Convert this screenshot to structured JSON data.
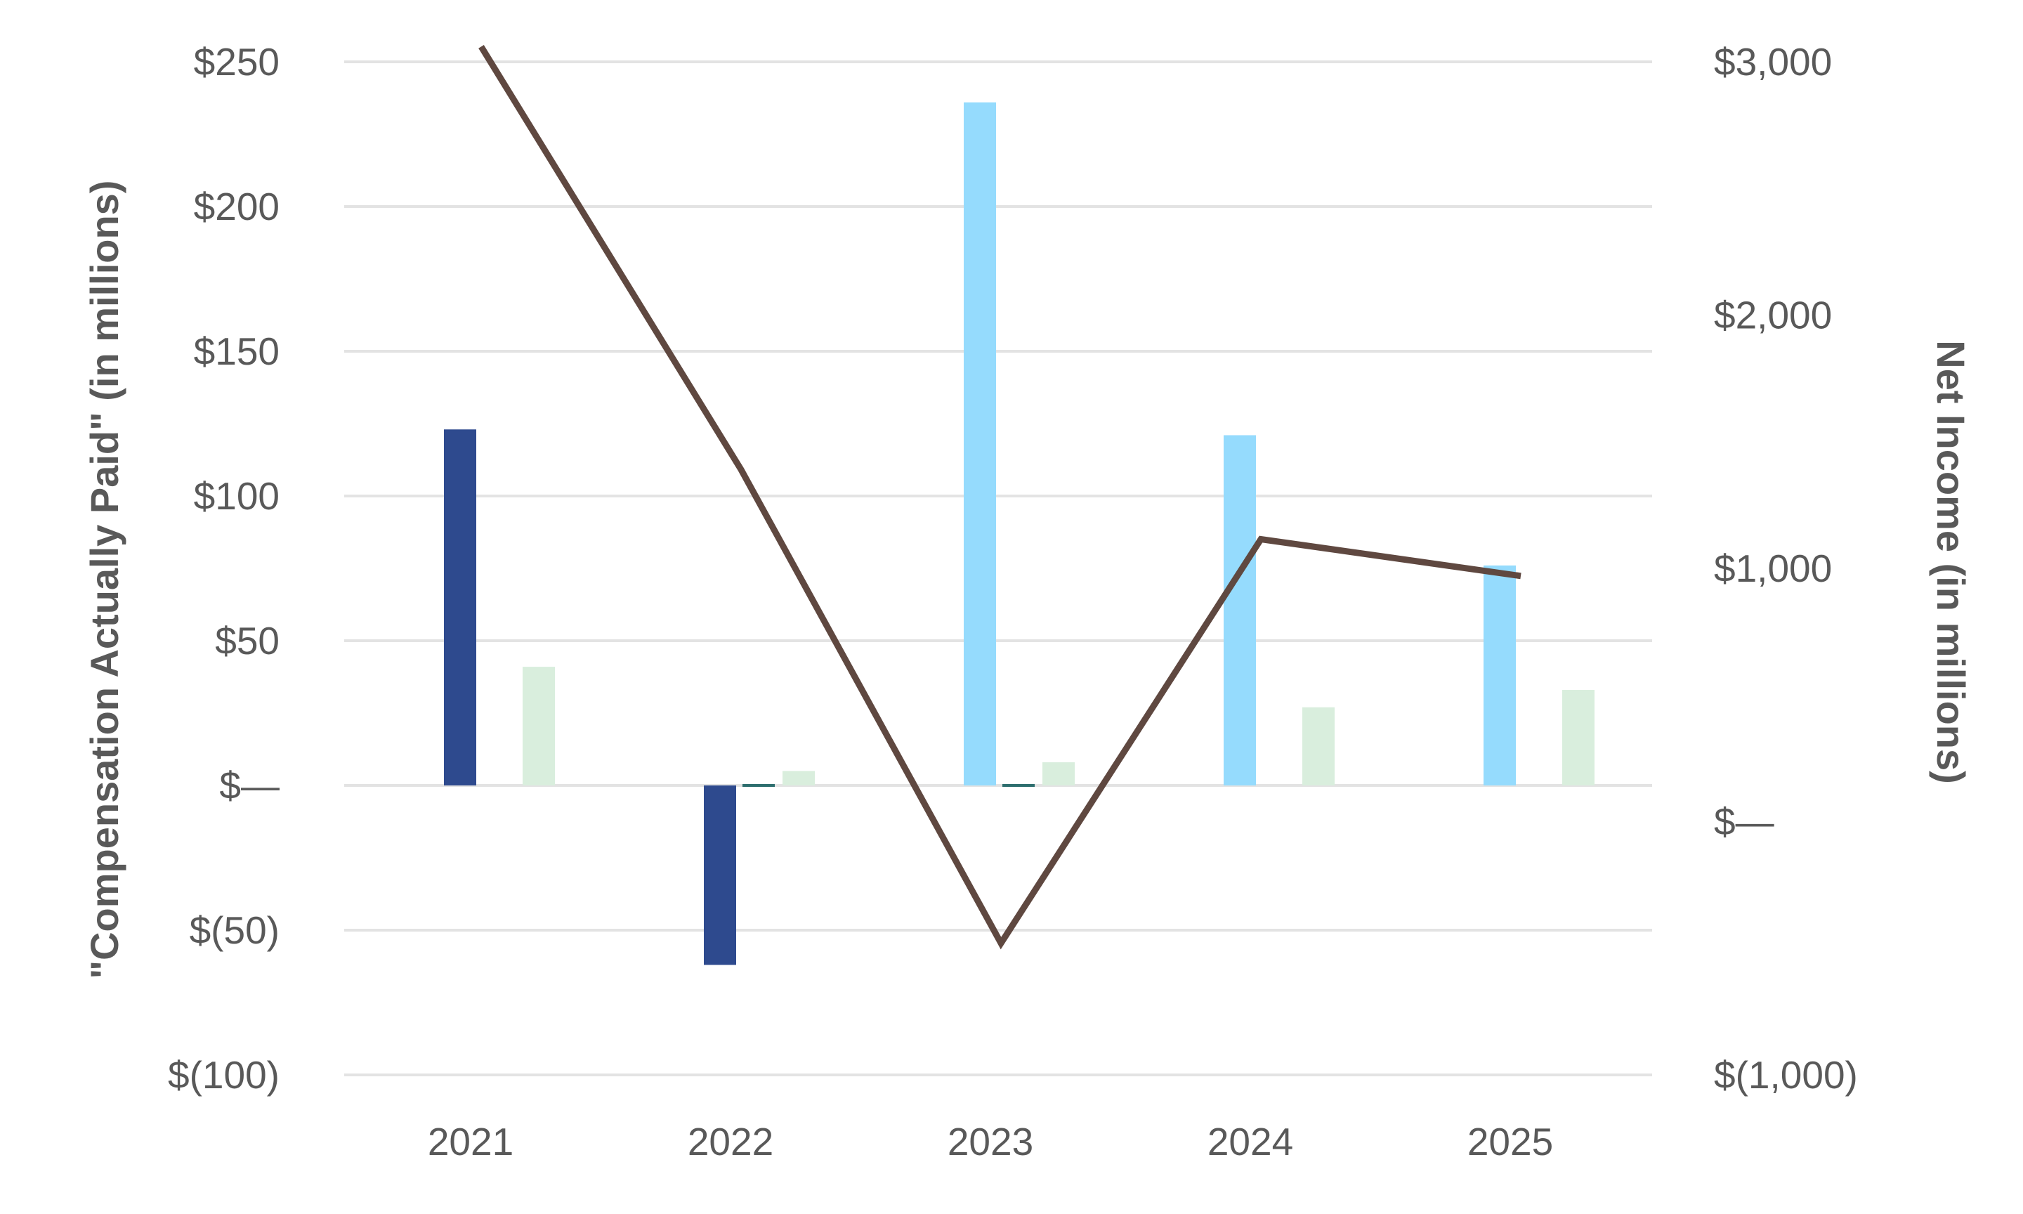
{
  "chart_data": {
    "type": "bar",
    "categories": [
      "2021",
      "2022",
      "2023",
      "2024",
      "2025"
    ],
    "ylabel": "\"Compensation Actually Paid\" (in millions)",
    "ylabel2": "Net Income (in millions)",
    "ylim": [
      -100,
      250
    ],
    "ylim2": [
      -1000,
      3000
    ],
    "y_ticks": [
      "$(100)",
      "$(50)",
      "$—",
      "$50",
      "$100",
      "$150",
      "$200",
      "$250"
    ],
    "y2_ticks": [
      "$(1,000)",
      "$—",
      "$1,000",
      "$2,000",
      "$3,000"
    ],
    "grid": true,
    "series": [
      {
        "type": "bar",
        "axis": "left",
        "slot": 0,
        "color": "#2e4a8e",
        "values": [
          123,
          -62,
          null,
          null,
          null
        ]
      },
      {
        "type": "bar",
        "axis": "left",
        "slot": 0,
        "color": "#95dbfd",
        "values": [
          null,
          null,
          236,
          121,
          76
        ]
      },
      {
        "type": "bar",
        "axis": "left",
        "slot": 1,
        "color": "#2d6e6e",
        "values": [
          null,
          0.5,
          0.5,
          null,
          null
        ]
      },
      {
        "type": "bar",
        "axis": "left",
        "slot": 2,
        "color": "#d9eedd",
        "values": [
          41,
          5,
          8,
          27,
          33
        ]
      },
      {
        "type": "line",
        "axis": "right",
        "color": "#5f4840",
        "values": [
          3060,
          1390,
          -480,
          1115,
          970
        ]
      }
    ]
  }
}
